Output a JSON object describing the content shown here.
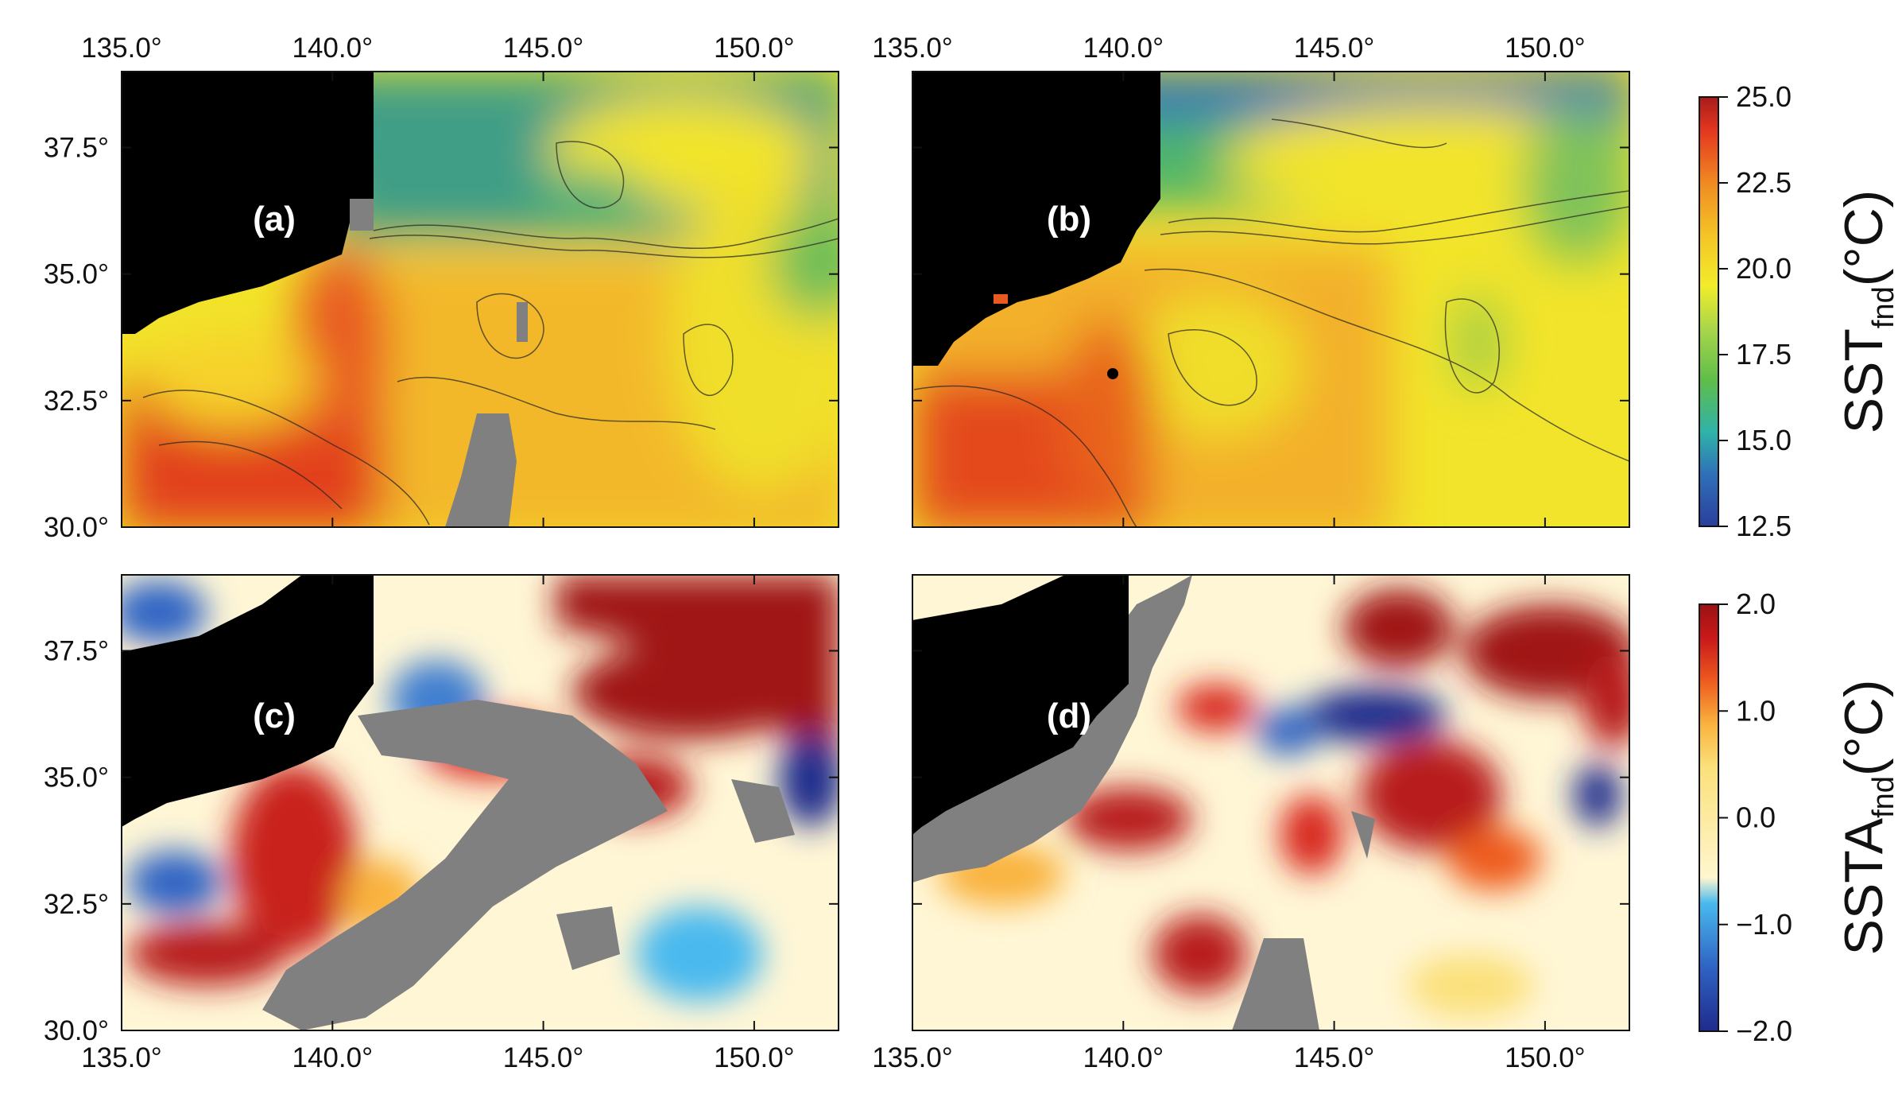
{
  "figure": {
    "lon_ticks": [
      "135.0°",
      "140.0°",
      "145.0°",
      "150.0°"
    ],
    "lat_ticks": [
      "37.5°",
      "35.0°",
      "32.5°",
      "30.0°"
    ],
    "lon_range": [
      135.0,
      152.0
    ],
    "lat_range": [
      30.0,
      39.0
    ],
    "panels": [
      {
        "id": "a",
        "label": "(a)",
        "variable": "SST"
      },
      {
        "id": "b",
        "label": "(b)",
        "variable": "SST"
      },
      {
        "id": "c",
        "label": "(c)",
        "variable": "SSTA"
      },
      {
        "id": "d",
        "label": "(d)",
        "variable": "SSTA"
      }
    ],
    "colorbars": [
      {
        "id": "sst",
        "title_main": "SST",
        "title_sub": "fnd",
        "title_unit": "(°C)",
        "ticks": [
          "25.0",
          "22.5",
          "20.0",
          "17.5",
          "15.0",
          "12.5"
        ],
        "range": [
          12.5,
          25.0
        ]
      },
      {
        "id": "ssta",
        "title_main": "SSTA",
        "title_sub": "fnd",
        "title_unit": "(°C)",
        "ticks": [
          "2.0",
          "1.0",
          "0.0",
          "−1.0",
          "−2.0"
        ],
        "range": [
          -2.0,
          2.0
        ]
      }
    ],
    "colors": {
      "land": "#000000",
      "missing": "#808080",
      "sst_scale": [
        "#2a3f9c",
        "#2f6fb9",
        "#2fb3a9",
        "#5fbd4a",
        "#a8d64a",
        "#f2ec2a",
        "#f4c326",
        "#f08a22",
        "#e4381f",
        "#a81b1b"
      ],
      "ssta_scale": [
        "#1f2a8c",
        "#2f63c4",
        "#49b9ee",
        "#fff6cf",
        "#fbe07a",
        "#f9b23d",
        "#ee5b1f",
        "#c9191a",
        "#9b1212"
      ]
    }
  }
}
